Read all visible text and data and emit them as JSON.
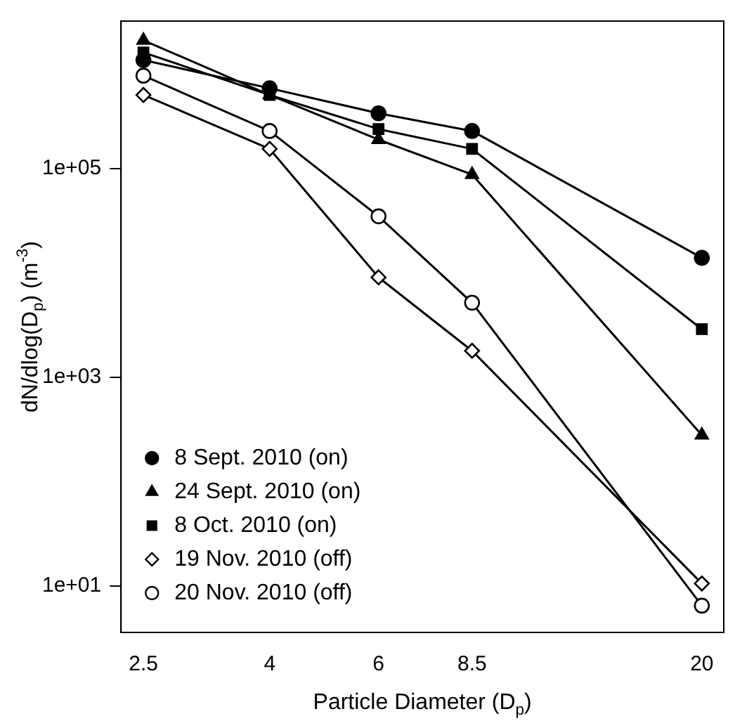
{
  "chart_data": {
    "type": "line",
    "xlabel": "Particle Diameter (D$_{p}$)",
    "ylabel": "dN/dlog(D$_{p}$) (m$^{-3}$)",
    "x": [
      2.5,
      4,
      6,
      8.5,
      20
    ],
    "series": [
      {
        "name": "8 Sept. 2010 (on)",
        "color": "#000000",
        "marker": "circle",
        "values": [
          1100000,
          590000,
          340000,
          230000,
          14000
        ]
      },
      {
        "name": "24 Sept. 2010 (on)",
        "color": "#000000",
        "marker": "triangle",
        "values": [
          1700000,
          510000,
          190000,
          88000,
          280
        ]
      },
      {
        "name": "8 Oct. 2010 (on)",
        "color": "#000000",
        "marker": "square",
        "values": [
          1300000,
          510000,
          240000,
          155000,
          2900
        ]
      },
      {
        "name": "19 Nov. 2010 (off)",
        "color": "#000000",
        "marker": "diamond",
        "colors": [
          "#ffffff",
          "#ffffff",
          "#ffffff",
          "#ffffff",
          "#ffffff"
        ],
        "values": [
          510000,
          155000,
          9100,
          1800,
          10.6
        ]
      },
      {
        "name": "20 Nov. 2010 (off)",
        "color": "#000000",
        "marker": "circle",
        "colors": [
          "#ffffff",
          "#ffffff",
          "#ffffff",
          "#ffffff",
          "#ffffff"
        ],
        "values": [
          780000,
          230000,
          35000,
          5200,
          6.5
        ]
      }
    ],
    "log": "xy",
    "xlim": [
      2.3,
      21.7
    ],
    "ylim": [
      3.6,
      2600000
    ],
    "xticks": [
      2.5,
      4,
      6,
      8.5,
      20
    ],
    "yticks": [
      {
        "value": 10,
        "label": "1e+01"
      },
      {
        "value": 1000,
        "label": "1e+03"
      },
      {
        "value": 100000,
        "label": "1e+05"
      }
    ],
    "grid": false,
    "legend": "bottom left",
    "line_style": "solid"
  }
}
